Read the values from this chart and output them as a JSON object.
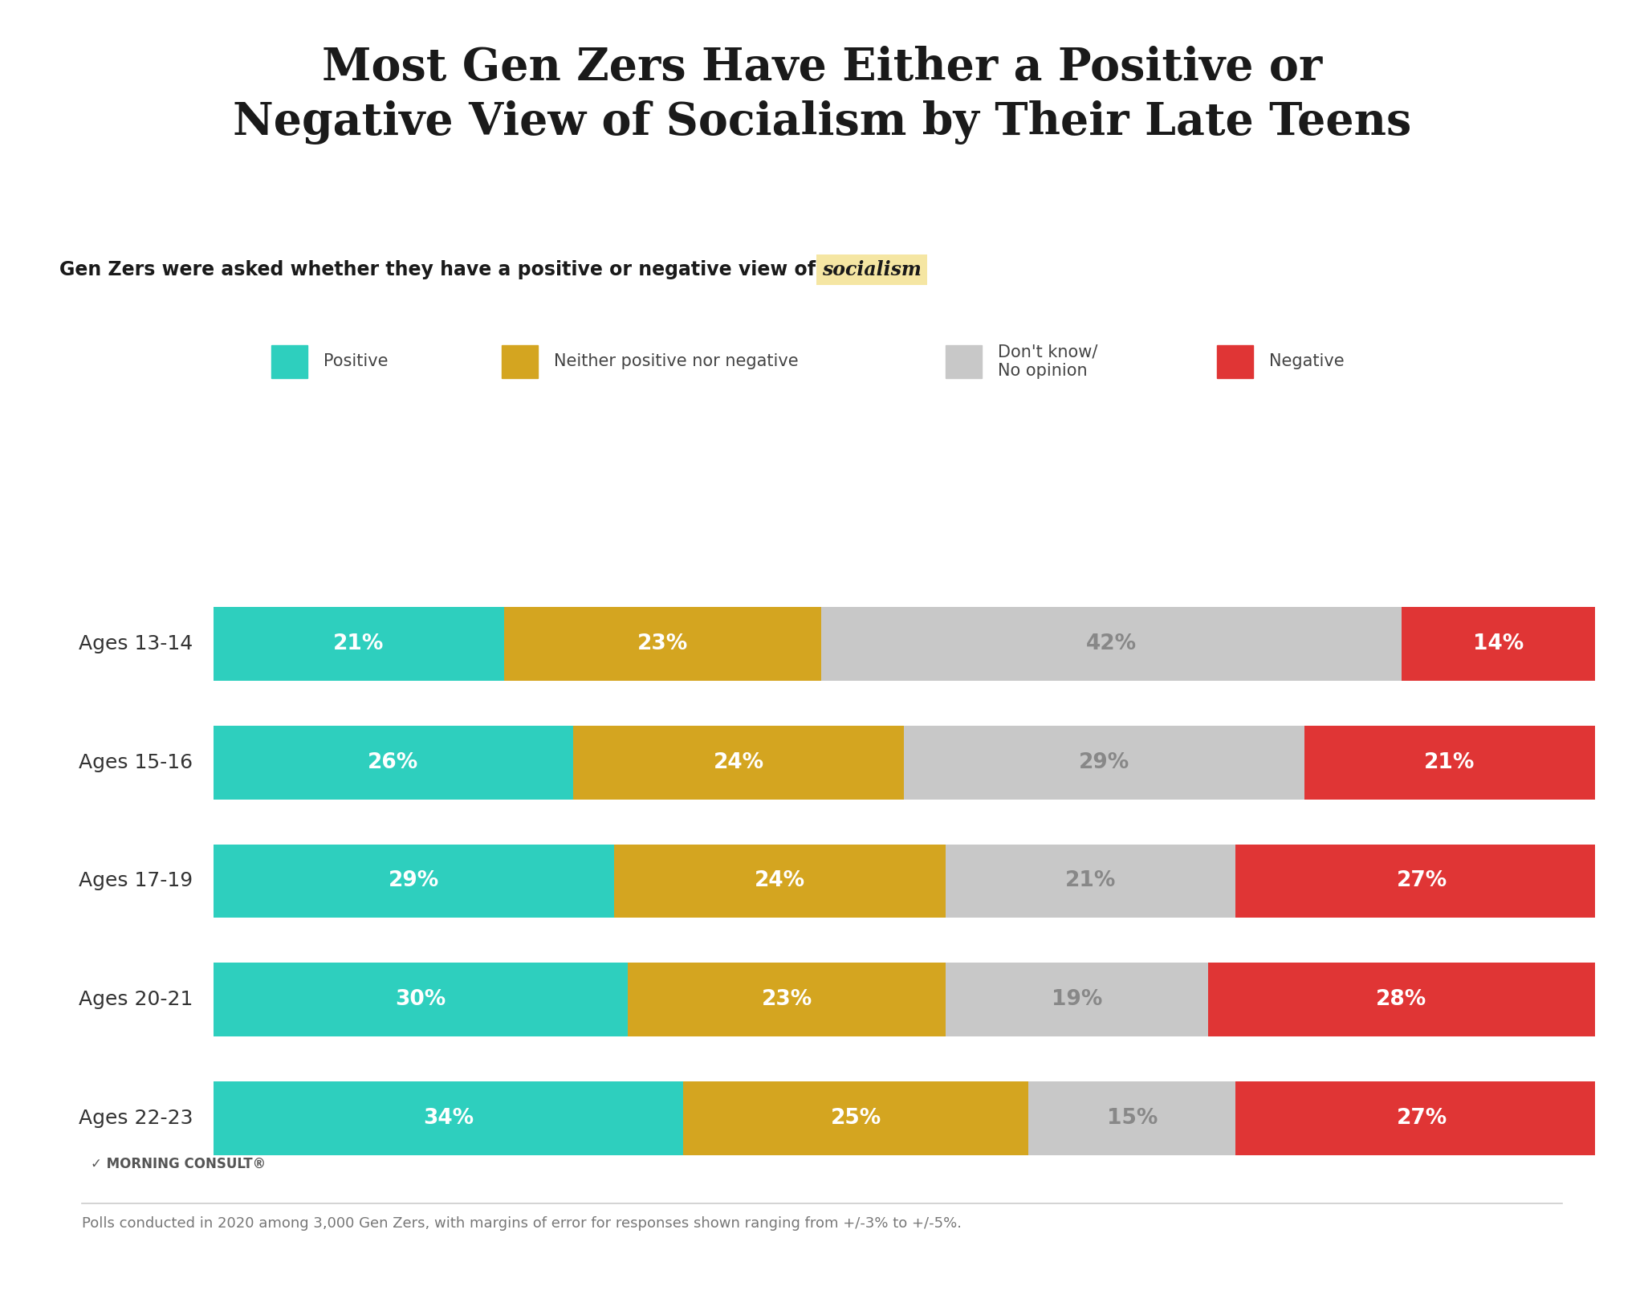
{
  "title": "Most Gen Zers Have Either a Positive or\nNegative View of Socialism by Their Late Teens",
  "subtitle_plain": "Gen Zers were asked whether they have a positive or negative view of ",
  "subtitle_highlight": "socialism",
  "subtitle_highlight_bg": "#f5e6a3",
  "categories": [
    "Ages 13-14",
    "Ages 15-16",
    "Ages 17-19",
    "Ages 20-21",
    "Ages 22-23"
  ],
  "series_keys": [
    "Positive",
    "Neither positive nor negative",
    "Don't know/\nNo opinion",
    "Negative"
  ],
  "series_data": {
    "Positive": [
      21,
      26,
      29,
      30,
      34
    ],
    "Neither positive nor negative": [
      23,
      24,
      24,
      23,
      25
    ],
    "Don't know/\nNo opinion": [
      42,
      29,
      21,
      19,
      15
    ],
    "Negative": [
      14,
      21,
      27,
      28,
      27
    ]
  },
  "colors": {
    "Positive": "#2ecfbe",
    "Neither positive nor negative": "#d4a520",
    "Don't know/\nNo opinion": "#c8c8c8",
    "Negative": "#e03535"
  },
  "text_colors": {
    "Positive": "#ffffff",
    "Neither positive nor negative": "#ffffff",
    "Don't know/\nNo opinion": "#888888",
    "Negative": "#ffffff"
  },
  "footnote": "Polls conducted in 2020 among 3,000 Gen Zers, with margins of error for responses shown ranging from +/-3% to +/-5%.",
  "background_color": "#ffffff",
  "title_fontsize": 40,
  "subtitle_fontsize": 17,
  "bar_label_fontsize": 19,
  "category_fontsize": 18,
  "legend_fontsize": 15,
  "footnote_fontsize": 13,
  "bar_height": 0.62
}
